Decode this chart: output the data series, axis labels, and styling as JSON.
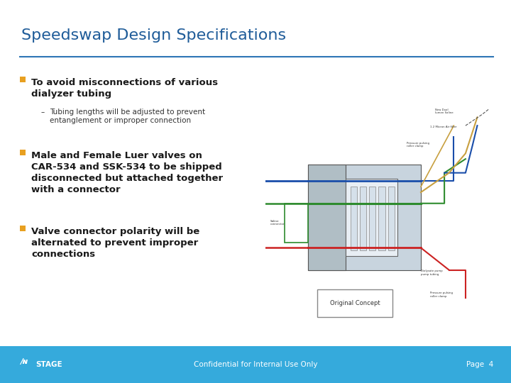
{
  "title": "Speedswap Design Specifications",
  "title_color": "#1F5C99",
  "title_fontsize": 16,
  "bg_color": "#FFFFFF",
  "separator_color": "#2E75B6",
  "bullet_color": "#E8A020",
  "bullet_items": [
    {
      "text": "To avoid misconnections of various\ndialyzer tubing",
      "bold": true,
      "sub_items": [
        "Tubing lengths will be adjusted to prevent\nentanglement or improper connection"
      ]
    },
    {
      "text": "Male and Female Luer valves on\nCAR-534 and SSK-534 to be shipped\ndisconnected but attached together\nwith a connector",
      "bold": true,
      "sub_items": []
    },
    {
      "text": "Valve connector polarity will be\nalternated to prevent improper\nconnections",
      "bold": true,
      "sub_items": []
    }
  ],
  "footer_bg": "#35AADC",
  "footer_text": "Confidential for Internal Use Only",
  "footer_text_color": "#FFFFFF",
  "footer_page": "Page  4",
  "image_caption": "Original Concept",
  "text_color": "#1A1A1A",
  "sub_text_color": "#333333",
  "main_font_size": 9.5,
  "sub_font_size": 7.5
}
